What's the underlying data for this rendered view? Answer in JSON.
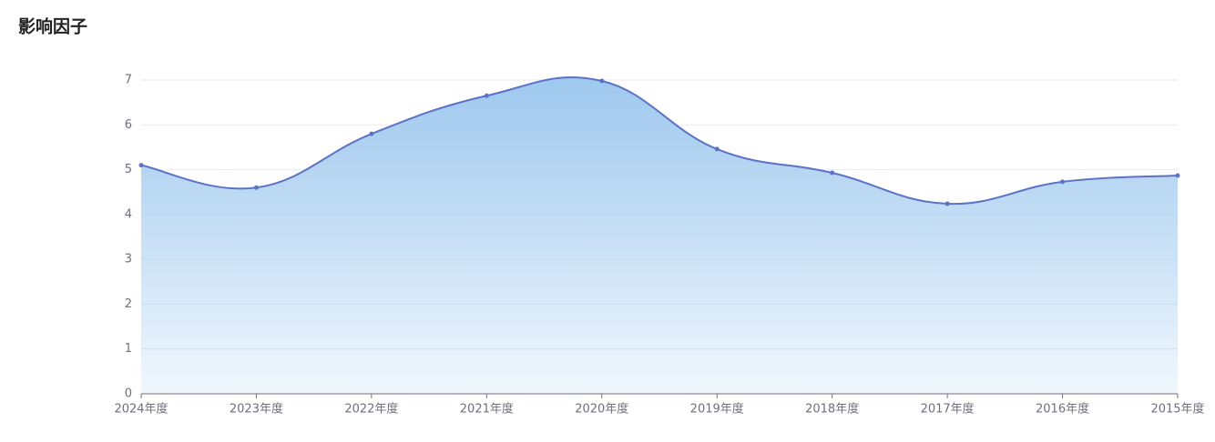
{
  "chart_data": {
    "type": "area",
    "title": "影响因子",
    "categories": [
      "2024年度",
      "2023年度",
      "2022年度",
      "2021年度",
      "2020年度",
      "2019年度",
      "2018年度",
      "2017年度",
      "2016年度",
      "2015年度"
    ],
    "values": [
      5.1,
      4.6,
      5.8,
      6.65,
      6.98,
      5.46,
      4.93,
      4.24,
      4.73,
      4.87
    ],
    "color": "#5b72c6",
    "fill": "#9ec8ee",
    "ylim": [
      0,
      7
    ],
    "yticks": [
      0,
      1,
      2,
      3,
      4,
      5,
      6,
      7
    ],
    "grid": true,
    "smooth": true
  }
}
